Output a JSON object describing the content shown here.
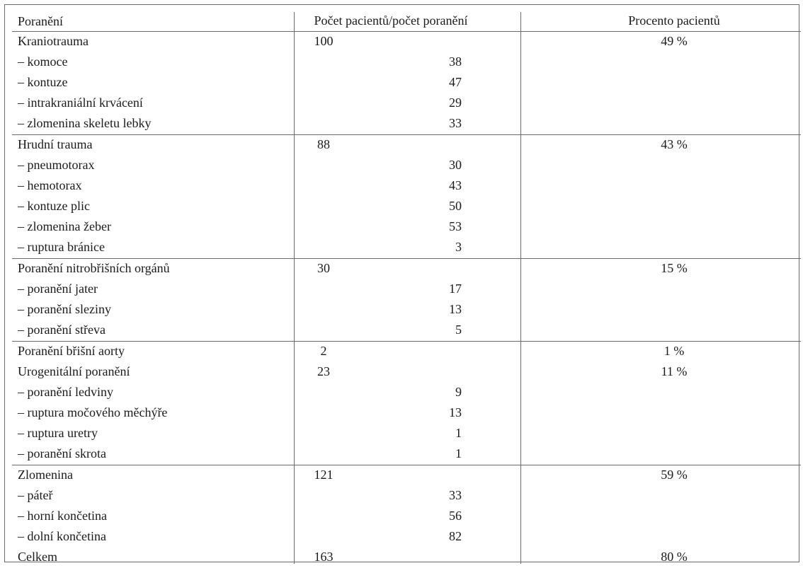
{
  "table": {
    "headers": [
      "Poranění",
      "Počet pacientů/počet poranění",
      "Procento pacientů"
    ],
    "rows": [
      {
        "label": "Kraniotrauma",
        "count": "100",
        "sub": "",
        "pct": "49 %"
      },
      {
        "label": "– komoce",
        "count": "",
        "sub": "38",
        "pct": ""
      },
      {
        "label": "– kontuze",
        "count": "",
        "sub": "47",
        "pct": ""
      },
      {
        "label": "– intrakraniální krvácení",
        "count": "",
        "sub": "29",
        "pct": ""
      },
      {
        "label": "– zlomenina skeletu lebky",
        "count": "",
        "sub": "33",
        "pct": ""
      },
      {
        "label": "Hrudní trauma",
        "count": "88",
        "sub": "",
        "pct": "43 %"
      },
      {
        "label": "– pneumotorax",
        "count": "",
        "sub": "30",
        "pct": ""
      },
      {
        "label": "– hemotorax",
        "count": "",
        "sub": "43",
        "pct": ""
      },
      {
        "label": "– kontuze plic",
        "count": "",
        "sub": "50",
        "pct": ""
      },
      {
        "label": "– zlomenina žeber",
        "count": "",
        "sub": "53",
        "pct": ""
      },
      {
        "label": "– ruptura bránice",
        "count": "",
        "sub": "3",
        "pct": ""
      },
      {
        "label": "Poranění nitrobřišních orgánů",
        "count": "30",
        "sub": "",
        "pct": "15 %"
      },
      {
        "label": "– poranění jater",
        "count": "",
        "sub": "17",
        "pct": ""
      },
      {
        "label": "– poranění sleziny",
        "count": "",
        "sub": "13",
        "pct": ""
      },
      {
        "label": "– poranění střeva",
        "count": "",
        "sub": "5",
        "pct": ""
      },
      {
        "label": "Poranění břišní aorty",
        "count": "2",
        "sub": "",
        "pct": "1 %"
      },
      {
        "label": "Urogenitální poranění",
        "count": "23",
        "sub": "",
        "pct": "11 %"
      },
      {
        "label": "– poranění ledviny",
        "count": "",
        "sub": "9",
        "pct": ""
      },
      {
        "label": "– ruptura močového měchýře",
        "count": "",
        "sub": "13",
        "pct": ""
      },
      {
        "label": "– ruptura uretry",
        "count": "",
        "sub": "1",
        "pct": ""
      },
      {
        "label": "– poranění skrota",
        "count": "",
        "sub": "1",
        "pct": ""
      },
      {
        "label": "Zlomenina",
        "count": "121",
        "sub": "",
        "pct": "59 %"
      },
      {
        "label": "– páteř",
        "count": "",
        "sub": "33",
        "pct": ""
      },
      {
        "label": "– horní končetina",
        "count": "",
        "sub": "56",
        "pct": ""
      },
      {
        "label": "– dolní končetina",
        "count": "",
        "sub": "82",
        "pct": ""
      },
      {
        "label": "Celkem",
        "count": "163",
        "sub": "",
        "pct": "80 %"
      }
    ]
  }
}
